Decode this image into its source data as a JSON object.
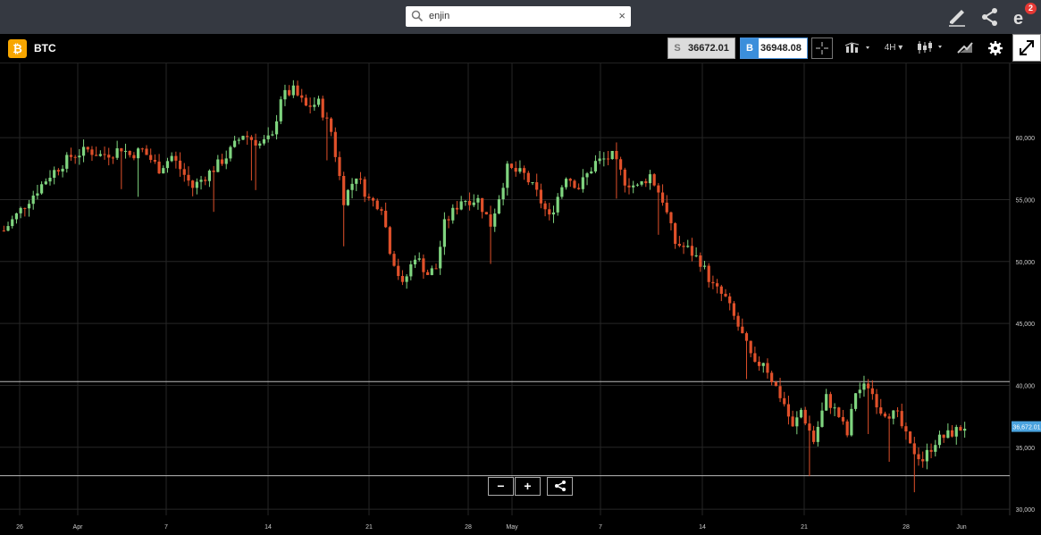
{
  "search": {
    "value": "enjin",
    "clear_symbol": "×"
  },
  "header": {
    "notifications_count": "2",
    "pen_icon": "pen-icon",
    "share_icon": "share-icon",
    "logo_icon": "etoro-logo-icon"
  },
  "asset": {
    "symbol_glyph": "₿",
    "name": "BTC"
  },
  "prices": {
    "sell_label": "S",
    "sell_value": "36672.01",
    "buy_label": "B",
    "buy_value": "36948.08"
  },
  "toolbar": {
    "timeframe": "4H",
    "dropdown_caret": "▾"
  },
  "zoom": {
    "minus": "−",
    "plus": "+"
  },
  "colors": {
    "up": "#7fd47f",
    "down": "#e0502a",
    "grid": "#262626",
    "price_tag": "#4aa3df"
  },
  "chart_data": {
    "type": "candlestick",
    "title": "",
    "xlabel": "",
    "ylabel": "",
    "ylim": [
      29500,
      66000
    ],
    "y_ticks": [
      "60,000",
      "55,000",
      "50,000",
      "45,000",
      "40,000",
      "35,000",
      "30,000"
    ],
    "x_ticks": [
      "26",
      "Apr",
      "7",
      "14",
      "21",
      "28",
      "May",
      "7",
      "14",
      "21",
      "28",
      "Jun"
    ],
    "current_price_label": "36,672.01",
    "current_price": 36672,
    "horizontal_lines": [
      40300,
      32700
    ],
    "path_points": [
      [
        0,
        52500
      ],
      [
        6,
        55000
      ],
      [
        11,
        57000
      ],
      [
        16,
        58500
      ],
      [
        20,
        59000
      ],
      [
        23,
        58600
      ],
      [
        26,
        58800
      ],
      [
        28,
        59200
      ],
      [
        30,
        58600
      ],
      [
        33,
        59000
      ],
      [
        37,
        57500
      ],
      [
        40,
        58500
      ],
      [
        45,
        56000
      ],
      [
        50,
        57500
      ],
      [
        53,
        58500
      ],
      [
        57,
        60300
      ],
      [
        61,
        59500
      ],
      [
        64,
        60000
      ],
      [
        66,
        63300
      ],
      [
        69,
        63800
      ],
      [
        72,
        62500
      ],
      [
        75,
        62800
      ],
      [
        78,
        60500
      ],
      [
        81,
        55000
      ],
      [
        84,
        57000
      ],
      [
        87,
        55000
      ],
      [
        90,
        54500
      ],
      [
        92,
        51000
      ],
      [
        95,
        48000
      ],
      [
        98,
        50500
      ],
      [
        101,
        49000
      ],
      [
        103,
        49500
      ],
      [
        105,
        53000
      ],
      [
        109,
        55000
      ],
      [
        113,
        55000
      ],
      [
        116,
        53000
      ],
      [
        120,
        57500
      ],
      [
        124,
        57000
      ],
      [
        127,
        55500
      ],
      [
        130,
        53500
      ],
      [
        134,
        57000
      ],
      [
        137,
        56000
      ],
      [
        141,
        58000
      ],
      [
        145,
        58500
      ],
      [
        148,
        56500
      ],
      [
        151,
        56000
      ],
      [
        154,
        57000
      ],
      [
        157,
        55000
      ],
      [
        160,
        51500
      ],
      [
        163,
        51000
      ],
      [
        166,
        50000
      ],
      [
        169,
        48000
      ],
      [
        172,
        47000
      ],
      [
        176,
        44000
      ],
      [
        179,
        41500
      ],
      [
        181,
        42000
      ],
      [
        183,
        40500
      ],
      [
        186,
        38500
      ],
      [
        188,
        36500
      ],
      [
        190,
        38000
      ],
      [
        193,
        35500
      ],
      [
        196,
        39000
      ],
      [
        199,
        37500
      ],
      [
        201,
        36000
      ],
      [
        203,
        39500
      ],
      [
        206,
        40000
      ],
      [
        209,
        38000
      ],
      [
        213,
        37500
      ],
      [
        216,
        35000
      ],
      [
        219,
        34000
      ],
      [
        222,
        35500
      ],
      [
        225,
        36000
      ],
      [
        229,
        36700
      ]
    ]
  }
}
